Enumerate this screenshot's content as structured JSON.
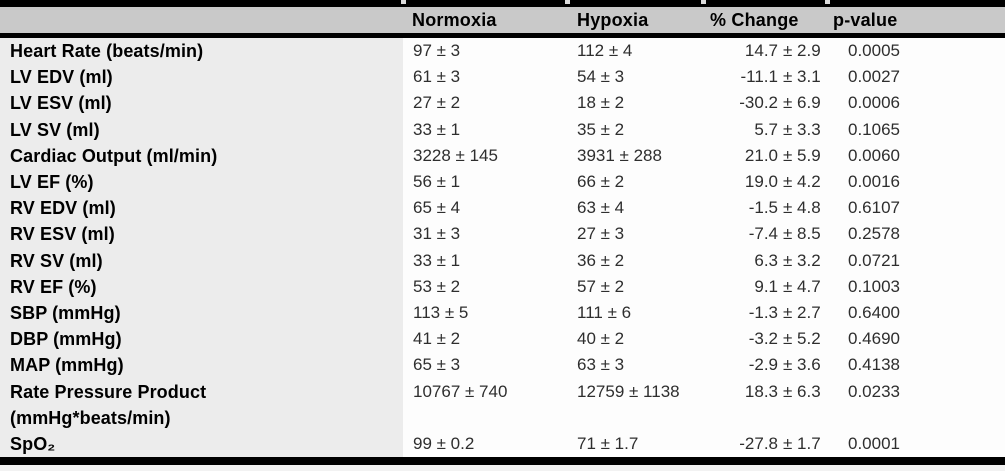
{
  "table": {
    "header": {
      "parameter": "",
      "normoxia": "Normoxia",
      "hypoxia": "Hypoxia",
      "change": "% Change",
      "pvalue": "p-value"
    },
    "rows": [
      {
        "label": "Heart Rate (beats/min)",
        "normoxia": "97 ± 3",
        "hypoxia": "112 ± 4",
        "change": "14.7 ± 2.9",
        "pvalue": "0.0005"
      },
      {
        "label": "LV EDV (ml)",
        "normoxia": "61 ± 3",
        "hypoxia": "54 ± 3",
        "change": "-11.1 ± 3.1",
        "pvalue": "0.0027"
      },
      {
        "label": "LV ESV (ml)",
        "normoxia": "27 ± 2",
        "hypoxia": "18 ± 2",
        "change": "-30.2 ± 6.9",
        "pvalue": "0.0006"
      },
      {
        "label": "LV SV (ml)",
        "normoxia": "33 ± 1",
        "hypoxia": "35 ± 2",
        "change": "5.7 ± 3.3",
        "pvalue": "0.1065"
      },
      {
        "label": "Cardiac Output (ml/min)",
        "normoxia": "3228 ± 145",
        "hypoxia": "3931 ± 288",
        "change": "21.0 ± 5.9",
        "pvalue": "0.0060"
      },
      {
        "label": "LV EF (%)",
        "normoxia": "56 ± 1",
        "hypoxia": "66 ± 2",
        "change": "19.0 ± 4.2",
        "pvalue": "0.0016"
      },
      {
        "label": "RV EDV (ml)",
        "normoxia": "65 ± 4",
        "hypoxia": "63 ± 4",
        "change": "-1.5 ± 4.8",
        "pvalue": "0.6107"
      },
      {
        "label": "RV ESV (ml)",
        "normoxia": "31 ± 3",
        "hypoxia": "27 ± 3",
        "change": "-7.4 ± 8.5",
        "pvalue": "0.2578"
      },
      {
        "label": "RV SV (ml)",
        "normoxia": "33 ± 1",
        "hypoxia": "36 ± 2",
        "change": "6.3 ± 3.2",
        "pvalue": "0.0721"
      },
      {
        "label": "RV EF (%)",
        "normoxia": "53 ± 2",
        "hypoxia": "57 ± 2",
        "change": "9.1 ± 4.7",
        "pvalue": "0.1003"
      },
      {
        "label": "SBP (mmHg)",
        "normoxia": "113 ± 5",
        "hypoxia": "111 ± 6",
        "change": "-1.3 ± 2.7",
        "pvalue": "0.6400"
      },
      {
        "label": "DBP (mmHg)",
        "normoxia": "41 ± 2",
        "hypoxia": "40 ± 2",
        "change": "-3.2 ± 5.2",
        "pvalue": "0.4690"
      },
      {
        "label": "MAP (mmHg)",
        "normoxia": "65 ± 3",
        "hypoxia": "63 ± 3",
        "change": "-2.9 ± 3.6",
        "pvalue": "0.4138"
      },
      {
        "label": "Rate Pressure Product\n(mmHg*beats/min)",
        "normoxia": "10767 ± 740",
        "hypoxia": "12759 ± 1138",
        "change": "18.3 ± 6.3",
        "pvalue": "0.0233"
      },
      {
        "label": "SpO₂",
        "normoxia": "99 ± 0.2",
        "hypoxia": "71 ± 1.7",
        "change": "-27.8 ± 1.7",
        "pvalue": "0.0001"
      }
    ],
    "style": {
      "header_bg": "#c9c9c9",
      "label_column_bg": "#ececec",
      "data_bg": "#fdfdfd",
      "border_color": "#000000"
    }
  }
}
